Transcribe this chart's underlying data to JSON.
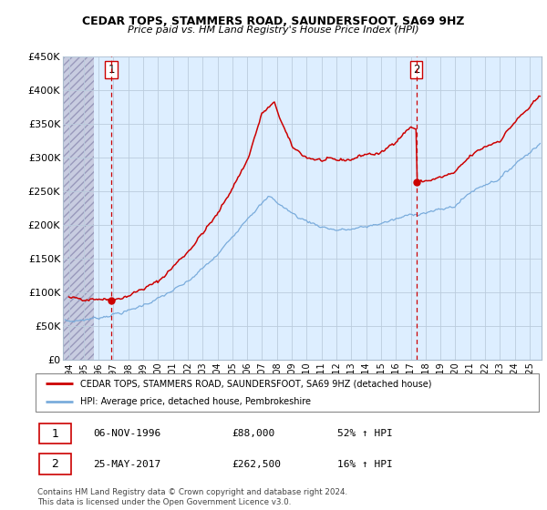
{
  "title1": "CEDAR TOPS, STAMMERS ROAD, SAUNDERSFOOT, SA69 9HZ",
  "title2": "Price paid vs. HM Land Registry's House Price Index (HPI)",
  "ylabel_ticks": [
    "£0",
    "£50K",
    "£100K",
    "£150K",
    "£200K",
    "£250K",
    "£300K",
    "£350K",
    "£400K",
    "£450K"
  ],
  "ylabel_values": [
    0,
    50000,
    100000,
    150000,
    200000,
    250000,
    300000,
    350000,
    400000,
    450000
  ],
  "xlim_start": 1993.6,
  "xlim_end": 2025.8,
  "ylim": [
    0,
    450000
  ],
  "sale1_x": 1996.85,
  "sale1_y": 88000,
  "sale1_label": "1",
  "sale1_date": "06-NOV-1996",
  "sale1_price": "£88,000",
  "sale1_hpi": "52% ↑ HPI",
  "sale2_x": 2017.38,
  "sale2_y": 262500,
  "sale2_label": "2",
  "sale2_date": "25-MAY-2017",
  "sale2_price": "£262,500",
  "sale2_hpi": "16% ↑ HPI",
  "legend_line1": "CEDAR TOPS, STAMMERS ROAD, SAUNDERSFOOT, SA69 9HZ (detached house)",
  "legend_line2": "HPI: Average price, detached house, Pembrokeshire",
  "footer": "Contains HM Land Registry data © Crown copyright and database right 2024.\nThis data is licensed under the Open Government Licence v3.0.",
  "red_color": "#cc0000",
  "blue_color": "#7aacdc",
  "plot_bg_color": "#ddeeff",
  "hatch_color": "#c8c8d8",
  "grid_color": "#bbccdd",
  "dashed_line_color": "#cc0000",
  "hatch_end": 1995.7
}
